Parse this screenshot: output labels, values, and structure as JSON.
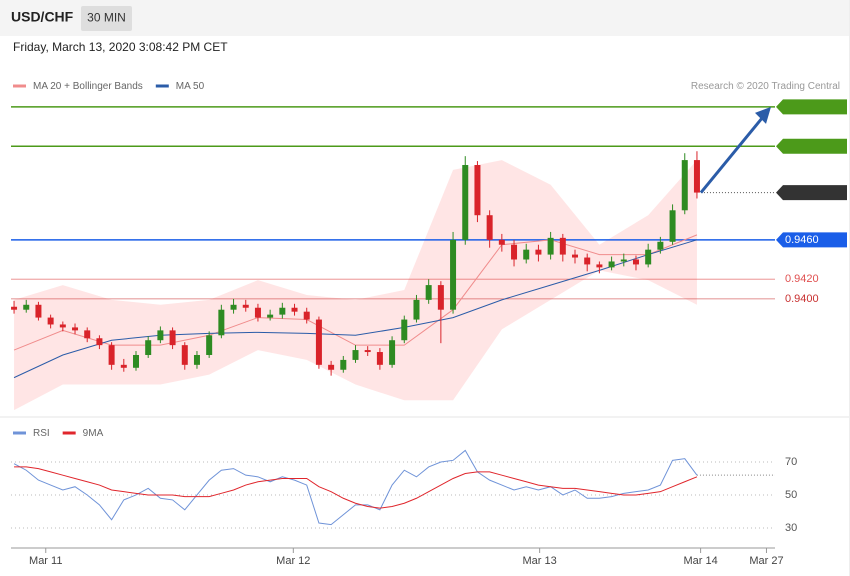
{
  "header": {
    "symbol": "USD/CHF",
    "interval": "30 MIN",
    "timestamp": "Friday, March 13, 2020 3:08:42 PM CET"
  },
  "chart_data": [
    {
      "type": "candlestick",
      "credit": "Research © 2020 Trading Central",
      "ylim": [
        0.928,
        0.9663
      ],
      "xlim": [
        -0.25,
        62.4
      ],
      "xticks": [
        {
          "value": 2.6,
          "label": "Mar 11"
        },
        {
          "value": 22.9,
          "label": "Mar 12"
        },
        {
          "value": 43.1,
          "label": "Mar 13"
        },
        {
          "value": 56.3,
          "label": "Mar 14"
        },
        {
          "value": 61.7,
          "label": "Mar 27"
        }
      ],
      "up_color": "#2e8b22",
      "down_color": "#d9232a",
      "candles": [
        [
          0.9392,
          0.9398,
          0.9385,
          0.9389
        ],
        [
          0.9389,
          0.9399,
          0.9386,
          0.9394
        ],
        [
          0.9394,
          0.9397,
          0.9378,
          0.9381
        ],
        [
          0.9381,
          0.9384,
          0.937,
          0.9374
        ],
        [
          0.9374,
          0.9377,
          0.9367,
          0.9371
        ],
        [
          0.9371,
          0.9375,
          0.9364,
          0.9368
        ],
        [
          0.9368,
          0.9371,
          0.9356,
          0.936
        ],
        [
          0.936,
          0.9363,
          0.9349,
          0.9353
        ],
        [
          0.9353,
          0.9356,
          0.9328,
          0.9333
        ],
        [
          0.9333,
          0.9339,
          0.9326,
          0.933
        ],
        [
          0.933,
          0.9347,
          0.9327,
          0.9343
        ],
        [
          0.9343,
          0.9362,
          0.934,
          0.9358
        ],
        [
          0.9358,
          0.9372,
          0.9355,
          0.9368
        ],
        [
          0.9368,
          0.9371,
          0.9349,
          0.9353
        ],
        [
          0.9353,
          0.9356,
          0.9328,
          0.9333
        ],
        [
          0.9333,
          0.9347,
          0.9329,
          0.9343
        ],
        [
          0.9343,
          0.9367,
          0.934,
          0.9363
        ],
        [
          0.9363,
          0.9394,
          0.936,
          0.9389
        ],
        [
          0.9389,
          0.94,
          0.9385,
          0.9394
        ],
        [
          0.9394,
          0.9399,
          0.9387,
          0.9391
        ],
        [
          0.9391,
          0.9395,
          0.9377,
          0.9381
        ],
        [
          0.9381,
          0.9389,
          0.9378,
          0.9384
        ],
        [
          0.9384,
          0.9396,
          0.938,
          0.9391
        ],
        [
          0.9391,
          0.9395,
          0.9383,
          0.9387
        ],
        [
          0.9387,
          0.9391,
          0.9375,
          0.9379
        ],
        [
          0.9379,
          0.9382,
          0.9329,
          0.9333
        ],
        [
          0.9333,
          0.9337,
          0.9322,
          0.9328
        ],
        [
          0.9328,
          0.9342,
          0.9325,
          0.9338
        ],
        [
          0.9338,
          0.9353,
          0.9335,
          0.9348
        ],
        [
          0.9348,
          0.9352,
          0.9342,
          0.9346
        ],
        [
          0.9346,
          0.935,
          0.9328,
          0.9333
        ],
        [
          0.9333,
          0.9362,
          0.933,
          0.9358
        ],
        [
          0.9358,
          0.9383,
          0.9355,
          0.9379
        ],
        [
          0.9379,
          0.9404,
          0.9376,
          0.9399
        ],
        [
          0.9399,
          0.942,
          0.9395,
          0.9414
        ],
        [
          0.9414,
          0.9418,
          0.9355,
          0.9389
        ],
        [
          0.9389,
          0.9468,
          0.9385,
          0.946
        ],
        [
          0.946,
          0.9545,
          0.9455,
          0.9536
        ],
        [
          0.9536,
          0.954,
          0.9478,
          0.9485
        ],
        [
          0.9485,
          0.949,
          0.9452,
          0.946
        ],
        [
          0.946,
          0.9466,
          0.9448,
          0.9455
        ],
        [
          0.9455,
          0.946,
          0.9433,
          0.944
        ],
        [
          0.944,
          0.9456,
          0.9436,
          0.945
        ],
        [
          0.945,
          0.9455,
          0.9438,
          0.9445
        ],
        [
          0.9445,
          0.9468,
          0.944,
          0.9462
        ],
        [
          0.9462,
          0.9466,
          0.9438,
          0.9445
        ],
        [
          0.9445,
          0.945,
          0.9436,
          0.9442
        ],
        [
          0.9442,
          0.9446,
          0.9428,
          0.9435
        ],
        [
          0.9435,
          0.9438,
          0.9426,
          0.9432
        ],
        [
          0.9432,
          0.9443,
          0.9429,
          0.9438
        ],
        [
          0.9438,
          0.9446,
          0.9433,
          0.944
        ],
        [
          0.944,
          0.9444,
          0.9429,
          0.9435
        ],
        [
          0.9435,
          0.9456,
          0.9432,
          0.945
        ],
        [
          0.945,
          0.9463,
          0.9446,
          0.9458
        ],
        [
          0.9458,
          0.9496,
          0.9455,
          0.949
        ],
        [
          0.949,
          0.9548,
          0.9486,
          0.9541
        ],
        [
          0.9541,
          0.955,
          0.9502,
          0.9508
        ]
      ],
      "series_x": [
        0,
        4,
        8,
        12,
        16,
        20,
        24,
        28,
        32,
        36,
        40,
        44,
        48,
        52,
        56
      ],
      "series": [
        {
          "name": "MA 20 + Bollinger Bands",
          "color": "#f08c8c",
          "band_color": "#ffdcdc",
          "values": [
            0.9348,
            0.9368,
            0.9353,
            0.9353,
            0.9363,
            0.9381,
            0.9379,
            0.9353,
            0.9353,
            0.9389,
            0.9455,
            0.946,
            0.9445,
            0.9445,
            0.9465
          ],
          "upper": [
            0.9399,
            0.9414,
            0.9399,
            0.9394,
            0.9399,
            0.9419,
            0.9404,
            0.9399,
            0.9409,
            0.9531,
            0.9541,
            0.9516,
            0.9455,
            0.9485,
            0.9541
          ],
          "lower": [
            0.9287,
            0.9313,
            0.9313,
            0.9313,
            0.9323,
            0.9348,
            0.9338,
            0.9313,
            0.9297,
            0.9297,
            0.9369,
            0.9399,
            0.9429,
            0.9419,
            0.9394
          ]
        },
        {
          "name": "MA 50",
          "color": "#2b5ca8",
          "values": [
            0.932,
            0.9343,
            0.9358,
            0.9363,
            0.9365,
            0.9366,
            0.9365,
            0.9363,
            0.9371,
            0.9381,
            0.9399,
            0.9414,
            0.9429,
            0.9445,
            0.946
          ]
        }
      ],
      "levels": [
        {
          "value": 0.9595,
          "color": "#4c9a1a",
          "boxed": true,
          "line": "solid"
        },
        {
          "value": 0.9555,
          "color": "#4c9a1a",
          "boxed": true,
          "line": "solid"
        },
        {
          "value": 0.9508,
          "color": "#333333",
          "boxed": true,
          "line": "dotted"
        },
        {
          "value": 0.946,
          "label": "0.9460",
          "color": "#1a5ee8",
          "boxed": true,
          "line": "solid"
        },
        {
          "value": 0.942,
          "label": "0.9420",
          "color": "#e05050",
          "boxed": false,
          "line": "thin"
        },
        {
          "value": 0.94,
          "label": "0.9400",
          "color": "#c83030",
          "boxed": false,
          "line": "thin"
        }
      ]
    },
    {
      "type": "line",
      "ylim": [
        23,
        92
      ],
      "yticks": [
        30,
        50,
        70
      ],
      "grid": true,
      "series": [
        {
          "name": "RSI",
          "color": "#6f93d8",
          "values": [
            69,
            65,
            59,
            56,
            53,
            55,
            50,
            44,
            35,
            47,
            50,
            54,
            48,
            47,
            41,
            50,
            59,
            65,
            66,
            62,
            61,
            58,
            61,
            59,
            56,
            33,
            32,
            38,
            44,
            44,
            41,
            56,
            65,
            61,
            67,
            70,
            71,
            77,
            64,
            59,
            56,
            53,
            55,
            53,
            55,
            50,
            53,
            48,
            48,
            49,
            51,
            52,
            53,
            56,
            71,
            72,
            62
          ]
        },
        {
          "name": "9MA",
          "color": "#e0262c",
          "values": [
            67,
            67,
            66,
            64,
            62,
            60,
            58,
            56,
            53,
            52,
            51,
            50,
            50,
            50,
            49,
            49,
            49,
            51,
            53,
            56,
            58,
            59,
            60,
            60,
            60,
            55,
            52,
            48,
            45,
            43,
            42,
            43,
            45,
            48,
            52,
            56,
            60,
            63,
            64,
            64,
            62,
            60,
            58,
            56,
            55,
            54,
            54,
            53,
            52,
            51,
            50,
            50,
            51,
            52,
            55,
            58,
            61
          ]
        }
      ]
    }
  ]
}
